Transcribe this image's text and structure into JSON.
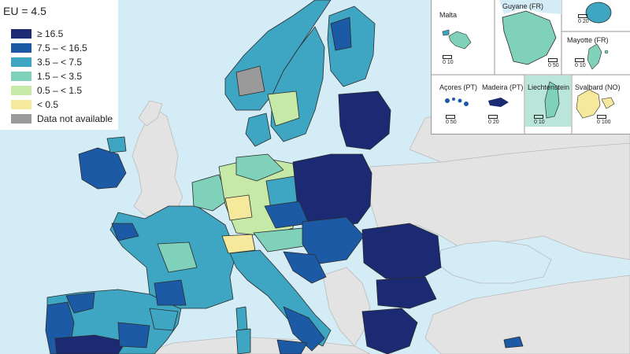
{
  "legend": {
    "title": "EU = 4.5",
    "items": [
      {
        "label": "≥ 16.5",
        "color": "#1b2a73"
      },
      {
        "label": "7.5 – < 16.5",
        "color": "#1c5aa6"
      },
      {
        "label": "3.5 – < 7.5",
        "color": "#3ea6c2"
      },
      {
        "label": "1.5 – < 3.5",
        "color": "#7fd1b9"
      },
      {
        "label": "0.5 – < 1.5",
        "color": "#c7e9a8"
      },
      {
        "label": "< 0.5",
        "color": "#f7e99c"
      },
      {
        "label": "Data not available",
        "color": "#9a9a9a"
      }
    ]
  },
  "colors": {
    "sea": "#d4ecf6",
    "non_eu": "#e3e3e3",
    "border": "#2b2b2b"
  },
  "insets": {
    "malta": {
      "label": "Malta",
      "scale": "0 10"
    },
    "guyane": {
      "label": "Guyane (FR)",
      "scale": "0 50"
    },
    "reunion": {
      "scale": "0 20"
    },
    "mayotte": {
      "label": "Mayotte (FR)",
      "scale": "0 10"
    },
    "acores": {
      "label": "Açores (PT)",
      "scale": "0 50"
    },
    "madeira": {
      "label": "Madeira (PT)",
      "scale": "0 20"
    },
    "liechtenstein": {
      "label": "Liechtenstein",
      "scale": "0 10"
    },
    "svalbard": {
      "label": "Svalbard (NO)",
      "scale": "0 100"
    }
  }
}
